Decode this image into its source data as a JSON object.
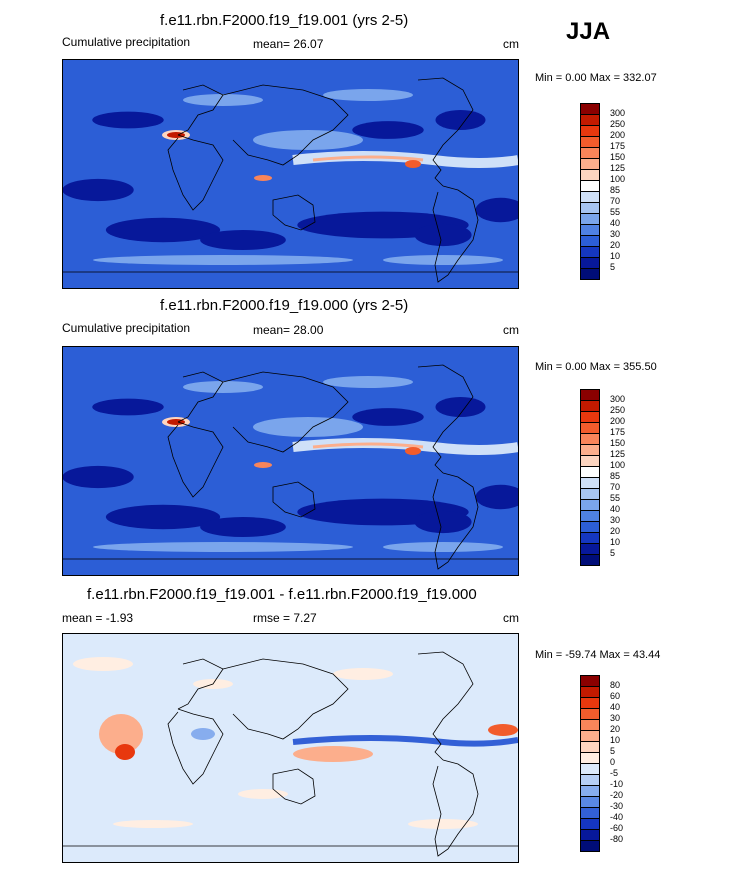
{
  "season": "JJA",
  "panels": [
    {
      "title": "f.e11.rbn.F2000.f19_f19.001 (yrs 2-5)",
      "left_text": "Cumulative precipitation",
      "mean_text": "mean=  26.07",
      "units": "cm",
      "minmax": "Min =   0.00 Max = 332.07",
      "kind": "precip"
    },
    {
      "title": "f.e11.rbn.F2000.f19_f19.000 (yrs 2-5)",
      "left_text": "Cumulative precipitation",
      "mean_text": "mean=  28.00",
      "units": "cm",
      "minmax": "Min =   0.00 Max = 355.50",
      "kind": "precip"
    },
    {
      "title": "f.e11.rbn.F2000.f19_f19.001 - f.e11.rbn.F2000.f19_f19.000",
      "left_text": "mean =  -1.93",
      "mean_text": "rmse =   7.27",
      "units": "cm",
      "minmax": "Min = -59.74 Max =  43.44",
      "kind": "diff"
    }
  ],
  "chart_data": [
    {
      "type": "heatmap",
      "title": "f.e11.rbn.F2000.f19_f19.001 (yrs 2-5)",
      "variable": "Cumulative precipitation",
      "units": "cm",
      "mean": 26.07,
      "min": 0.0,
      "max": 332.07,
      "contour_levels": [
        5,
        10,
        20,
        30,
        40,
        55,
        70,
        85,
        100,
        125,
        150,
        175,
        200,
        250,
        300
      ]
    },
    {
      "type": "heatmap",
      "title": "f.e11.rbn.F2000.f19_f19.000 (yrs 2-5)",
      "variable": "Cumulative precipitation",
      "units": "cm",
      "mean": 28.0,
      "min": 0.0,
      "max": 355.5,
      "contour_levels": [
        5,
        10,
        20,
        30,
        40,
        55,
        70,
        85,
        100,
        125,
        150,
        175,
        200,
        250,
        300
      ]
    },
    {
      "type": "heatmap",
      "title": "f.e11.rbn.F2000.f19_f19.001 - f.e11.rbn.F2000.f19_f19.000",
      "units": "cm",
      "mean": -1.93,
      "rmse": 7.27,
      "min": -59.74,
      "max": 43.44,
      "contour_levels": [
        -80,
        -60,
        -40,
        -30,
        -20,
        -10,
        -5,
        0,
        5,
        10,
        20,
        30,
        40,
        60,
        80
      ]
    }
  ],
  "colorbars": {
    "precip": {
      "labels": [
        "300",
        "250",
        "200",
        "175",
        "150",
        "125",
        "100",
        "85",
        "70",
        "55",
        "40",
        "30",
        "20",
        "10",
        "5"
      ],
      "colors": [
        "#8a0000",
        "#c21a00",
        "#e8380e",
        "#f25c2c",
        "#f9855a",
        "#fcae8c",
        "#fdd5c0",
        "#ffffff",
        "#cfe0f8",
        "#a6c4f2",
        "#7aa5ec",
        "#4f81e3",
        "#2c5ed6",
        "#1537c0",
        "#07189a",
        "#000d78"
      ]
    },
    "diff": {
      "labels": [
        "80",
        "60",
        "40",
        "30",
        "20",
        "10",
        "5",
        "0",
        "-5",
        "-10",
        "-20",
        "-30",
        "-40",
        "-60",
        "-80"
      ],
      "colors": [
        "#8a0000",
        "#c21a00",
        "#e8380e",
        "#f25c2c",
        "#f9855a",
        "#fcae8c",
        "#fdd5c0",
        "#ffeee2",
        "#dceafb",
        "#b6cff5",
        "#87adee",
        "#5a88e4",
        "#3360d6",
        "#1536c0",
        "#07189a",
        "#000d78"
      ]
    }
  }
}
